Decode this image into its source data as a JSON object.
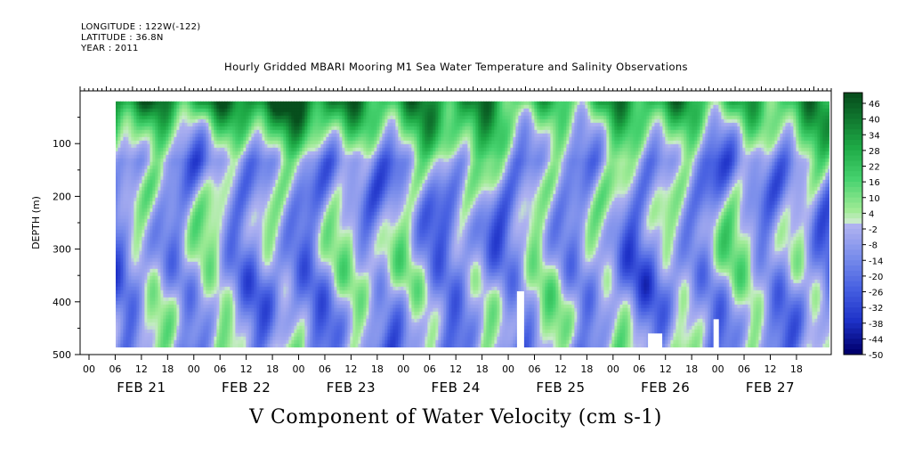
{
  "header": {
    "longitude": "LONGITUDE : 122W(-122)",
    "latitude": "LATITUDE : 36.8N",
    "year": "YEAR : 2011",
    "title": "Hourly Gridded MBARI Mooring M1 Sea Water Temperature and Salinity Observations"
  },
  "chart_data": {
    "type": "heatmap",
    "title": "Hourly Gridded MBARI Mooring M1 Sea Water Temperature and Salinity Observations",
    "xlabel": "V Component of Water Velocity (cm s-1)",
    "ylabel": "DEPTH (m)",
    "y_axis": {
      "ylim": [
        500,
        0
      ],
      "ticks": [
        100,
        200,
        300,
        400,
        500
      ],
      "inverted": true
    },
    "x_axis": {
      "hour_ticks": [
        "00",
        "06",
        "12",
        "18",
        "00",
        "06",
        "12",
        "18",
        "00",
        "06",
        "12",
        "18",
        "00",
        "06",
        "12",
        "18",
        "00",
        "06",
        "12",
        "18",
        "00",
        "06",
        "12",
        "18",
        "00",
        "06",
        "12",
        "18"
      ],
      "day_labels": [
        "FEB 21",
        "FEB 22",
        "FEB 23",
        "FEB 24",
        "FEB 25",
        "FEB 26",
        "FEB 27"
      ],
      "start": "2011-02-21T00:00",
      "end": "2011-02-28T00:00",
      "data_start": "2011-02-21T06:00"
    },
    "colorbar": {
      "levels": [
        "46",
        "40",
        "34",
        "28",
        "22",
        "16",
        "10",
        "4",
        "-2",
        "-8",
        "-14",
        "-20",
        "-26",
        "-32",
        "-38",
        "-44",
        "-50"
      ],
      "range": [
        -50,
        50
      ]
    },
    "depth_range_observed": [
      20,
      485
    ]
  },
  "colors": {
    "positive": "#1fa34a",
    "strong_positive": "#0a5c1f",
    "weak_positive": "#9fe39a",
    "weak_negative": "#b3b6f0",
    "negative": "#6a78e6",
    "strong_negative": "#000080"
  }
}
